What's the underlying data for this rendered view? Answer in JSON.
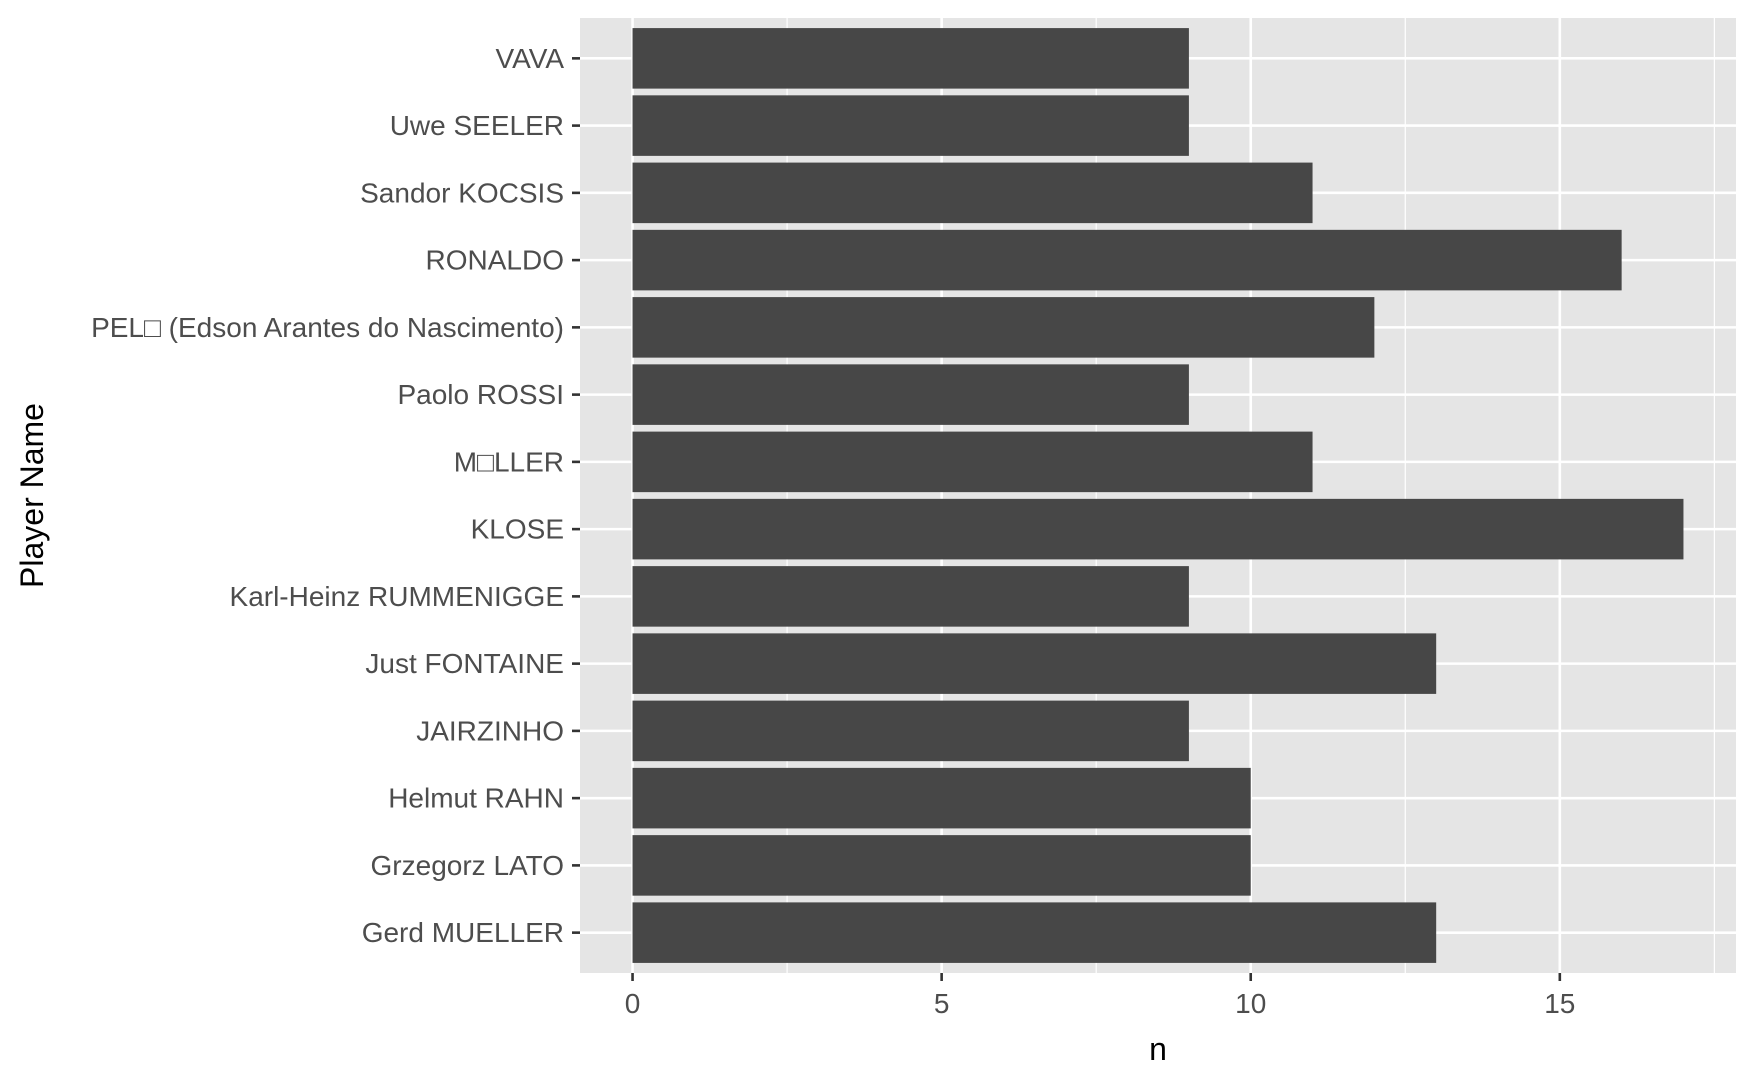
{
  "chart_data": {
    "type": "bar",
    "orientation": "horizontal",
    "title": "",
    "xlabel": "n",
    "ylabel": "Player Name",
    "categories": [
      "Gerd MUELLER",
      "Grzegorz LATO",
      "Helmut RAHN",
      "JAIRZINHO",
      "Just FONTAINE",
      "Karl-Heinz RUMMENIGGE",
      "KLOSE",
      "M□LLER",
      "Paolo ROSSI",
      "PEL□ (Edson Arantes do Nascimento)",
      "RONALDO",
      "Sandor KOCSIS",
      "Uwe SEELER",
      "VAVA"
    ],
    "values": [
      13,
      10,
      10,
      9,
      13,
      9,
      17,
      11,
      9,
      12,
      16,
      11,
      9,
      9
    ],
    "xlim": [
      -0.85,
      17.85
    ],
    "x_ticks": [
      0,
      5,
      10,
      15
    ],
    "x_tick_labels": [
      "0",
      "5",
      "10",
      "15"
    ],
    "grid": true,
    "legend": "none",
    "colors": {
      "bar": "#474747",
      "panel_background": "#e5e5e5",
      "grid_line": "#ffffff",
      "tick_label": "#4d4d4d",
      "axis_title": "#000000"
    }
  }
}
